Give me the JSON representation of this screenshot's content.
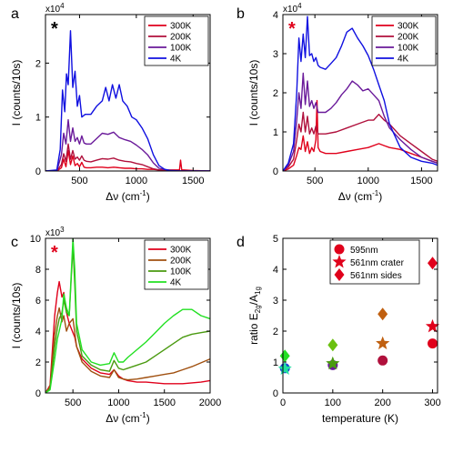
{
  "chart_data": [
    {
      "panel": "a",
      "type": "line",
      "marker": "*",
      "marker_color": "#000000",
      "multiplier": "x10",
      "multiplier_exp": "4",
      "xlabel": "Δν (cm",
      "xlabel_sup": "-1",
      "xlabel_tail": ")",
      "ylabel": "I (counts/10s)",
      "xlim": [
        200,
        1650
      ],
      "ylim": [
        0,
        2.9
      ],
      "xticks": [
        500,
        1000,
        1500
      ],
      "xtick_labels": [
        "500",
        "1000",
        "1500"
      ],
      "yticks": [
        0,
        1,
        2
      ],
      "ytick_labels": [
        "0",
        "1",
        "2"
      ],
      "legend_position": "top-right",
      "series": [
        {
          "name": "300K",
          "color": "#e0001b",
          "x": [
            200,
            300,
            340,
            360,
            380,
            400,
            420,
            440,
            460,
            480,
            500,
            520,
            540,
            560,
            600,
            650,
            700,
            750,
            800,
            850,
            900,
            950,
            1000,
            1050,
            1100,
            1150,
            1200,
            1250,
            1300,
            1350,
            1380,
            1390,
            1400,
            1420,
            1500,
            1650
          ],
          "y": [
            0,
            0,
            0.06,
            0.22,
            0.08,
            0.38,
            0.12,
            0.28,
            0.1,
            0.14,
            0.08,
            0.16,
            0.07,
            0.06,
            0.06,
            0.07,
            0.07,
            0.06,
            0.07,
            0.06,
            0.05,
            0.05,
            0.04,
            0.04,
            0.03,
            0.03,
            0.02,
            0.02,
            0.02,
            0.02,
            0.02,
            0.2,
            0.02,
            0.02,
            0.01,
            0
          ]
        },
        {
          "name": "200K",
          "color": "#b0103c",
          "x": [
            200,
            300,
            340,
            360,
            380,
            400,
            420,
            440,
            460,
            480,
            500,
            520,
            540,
            560,
            600,
            650,
            700,
            750,
            800,
            850,
            900,
            950,
            1000,
            1050,
            1100,
            1150,
            1200,
            1300,
            1400,
            1500,
            1650
          ],
          "y": [
            0,
            0,
            0.12,
            0.32,
            0.18,
            0.5,
            0.22,
            0.38,
            0.22,
            0.26,
            0.2,
            0.28,
            0.2,
            0.18,
            0.17,
            0.2,
            0.23,
            0.22,
            0.24,
            0.2,
            0.18,
            0.17,
            0.14,
            0.12,
            0.08,
            0.04,
            0.02,
            0.01,
            0,
            0,
            0
          ]
        },
        {
          "name": "100K",
          "color": "#6a1a9a",
          "x": [
            200,
            300,
            340,
            360,
            380,
            400,
            420,
            440,
            460,
            480,
            500,
            520,
            540,
            560,
            600,
            650,
            700,
            750,
            800,
            850,
            900,
            950,
            1000,
            1050,
            1100,
            1150,
            1200,
            1300,
            1400,
            1500,
            1650
          ],
          "y": [
            0,
            0,
            0.3,
            0.7,
            0.5,
            0.95,
            0.55,
            0.8,
            0.55,
            0.62,
            0.5,
            0.65,
            0.52,
            0.5,
            0.5,
            0.6,
            0.7,
            0.68,
            0.72,
            0.62,
            0.58,
            0.55,
            0.48,
            0.4,
            0.3,
            0.15,
            0.05,
            0.01,
            0,
            0,
            0
          ]
        },
        {
          "name": "4K",
          "color": "#1010e0",
          "x": [
            200,
            300,
            330,
            350,
            370,
            385,
            400,
            420,
            440,
            460,
            480,
            500,
            520,
            550,
            600,
            650,
            700,
            730,
            760,
            790,
            820,
            850,
            880,
            920,
            960,
            1000,
            1050,
            1100,
            1150,
            1200,
            1250,
            1300,
            1400,
            1500,
            1650
          ],
          "y": [
            0,
            0.02,
            0.4,
            1.5,
            1.1,
            1.8,
            1.6,
            2.6,
            1.55,
            1.85,
            1.2,
            1.4,
            1.0,
            1.05,
            1.05,
            1.2,
            1.3,
            1.55,
            1.3,
            1.6,
            1.35,
            1.6,
            1.3,
            1.2,
            1.0,
            0.95,
            0.8,
            0.6,
            0.3,
            0.1,
            0.03,
            0.01,
            0,
            0,
            0
          ]
        }
      ]
    },
    {
      "panel": "b",
      "type": "line",
      "marker": "*",
      "marker_color": "#e0001b",
      "multiplier": "x10",
      "multiplier_exp": "4",
      "xlabel": "Δν (cm",
      "xlabel_sup": "-1",
      "xlabel_tail": ")",
      "ylabel": "I (counts/10s)",
      "xlim": [
        200,
        1650
      ],
      "ylim": [
        0,
        4
      ],
      "xticks": [
        500,
        1000,
        1500
      ],
      "xtick_labels": [
        "500",
        "1000",
        "1500"
      ],
      "yticks": [
        0,
        1,
        2,
        3,
        4
      ],
      "ytick_labels": [
        "0",
        "1",
        "2",
        "3",
        "4"
      ],
      "legend_position": "top-right",
      "series": [
        {
          "name": "300K",
          "color": "#e0001b",
          "x": [
            200,
            250,
            300,
            330,
            350,
            370,
            390,
            410,
            430,
            450,
            470,
            490,
            510,
            520,
            530,
            550,
            600,
            700,
            800,
            900,
            1000,
            1100,
            1150,
            1200,
            1300,
            1400,
            1500,
            1600,
            1650
          ],
          "y": [
            0,
            0.05,
            0.15,
            0.4,
            0.6,
            0.55,
            0.9,
            0.5,
            0.75,
            0.45,
            0.6,
            0.5,
            0.8,
            1.8,
            0.6,
            0.5,
            0.45,
            0.45,
            0.5,
            0.55,
            0.6,
            0.7,
            0.65,
            0.6,
            0.55,
            0.45,
            0.35,
            0.25,
            0.2
          ]
        },
        {
          "name": "200K",
          "color": "#b0103c",
          "x": [
            200,
            250,
            300,
            330,
            350,
            370,
            390,
            410,
            430,
            450,
            470,
            490,
            510,
            530,
            550,
            600,
            700,
            800,
            900,
            1000,
            1050,
            1100,
            1150,
            1200,
            1300,
            1400,
            1500,
            1600,
            1650
          ],
          "y": [
            0,
            0.1,
            0.3,
            0.8,
            1.2,
            1.0,
            1.5,
            1.0,
            1.4,
            0.95,
            1.1,
            0.95,
            1.15,
            0.95,
            0.95,
            0.95,
            1.0,
            1.1,
            1.2,
            1.3,
            1.3,
            1.45,
            1.3,
            1.2,
            0.9,
            0.7,
            0.5,
            0.3,
            0.25
          ]
        },
        {
          "name": "100K",
          "color": "#6a1a9a",
          "x": [
            200,
            250,
            300,
            330,
            350,
            370,
            390,
            410,
            430,
            450,
            470,
            490,
            510,
            530,
            550,
            600,
            650,
            700,
            750,
            800,
            850,
            900,
            950,
            1000,
            1050,
            1100,
            1150,
            1200,
            1300,
            1400,
            1500,
            1600,
            1650
          ],
          "y": [
            0,
            0.15,
            0.5,
            1.3,
            2.0,
            1.6,
            2.5,
            1.7,
            2.3,
            1.65,
            1.8,
            1.6,
            1.75,
            1.5,
            1.5,
            1.5,
            1.6,
            1.75,
            1.95,
            2.1,
            2.3,
            2.2,
            2.05,
            2.1,
            1.95,
            1.8,
            1.4,
            1.1,
            0.8,
            0.55,
            0.35,
            0.25,
            0.2
          ]
        },
        {
          "name": "4K",
          "color": "#1010e0",
          "x": [
            200,
            250,
            300,
            330,
            350,
            370,
            390,
            410,
            430,
            450,
            470,
            490,
            510,
            530,
            550,
            600,
            650,
            700,
            750,
            800,
            850,
            900,
            950,
            1000,
            1050,
            1100,
            1150,
            1200,
            1300,
            1400,
            1500,
            1600,
            1650
          ],
          "y": [
            0,
            0.2,
            0.7,
            2.0,
            3.4,
            2.8,
            3.5,
            2.9,
            3.95,
            2.95,
            3.0,
            2.8,
            2.9,
            2.7,
            2.65,
            2.6,
            2.75,
            2.9,
            3.2,
            3.55,
            3.65,
            3.4,
            3.2,
            2.95,
            2.6,
            2.2,
            1.8,
            1.2,
            0.6,
            0.35,
            0.25,
            0.2,
            0.15
          ]
        }
      ]
    },
    {
      "panel": "c",
      "type": "line",
      "marker": "*",
      "marker_color": "#e0001b",
      "multiplier": "x10",
      "multiplier_exp": "3",
      "xlabel": "Δν (cm",
      "xlabel_sup": "-1",
      "xlabel_tail": ")",
      "ylabel": "I (counts/10s)",
      "xlim": [
        200,
        2000
      ],
      "ylim": [
        0,
        10
      ],
      "xticks": [
        500,
        1000,
        1500,
        2000
      ],
      "xtick_labels": [
        "500",
        "1000",
        "1500",
        "2000"
      ],
      "yticks": [
        0,
        2,
        4,
        6,
        8,
        10
      ],
      "ytick_labels": [
        "0",
        "2",
        "4",
        "6",
        "8",
        "10"
      ],
      "legend_position": "top-right",
      "series": [
        {
          "name": "300K",
          "color": "#e0001b",
          "x": [
            200,
            250,
            300,
            330,
            350,
            380,
            400,
            430,
            460,
            500,
            520,
            540,
            600,
            700,
            800,
            900,
            950,
            1000,
            1050,
            1100,
            1200,
            1300,
            1400,
            1500,
            1600,
            1700,
            1800,
            1900,
            2000
          ],
          "y": [
            0,
            0.5,
            5.0,
            6.5,
            7.2,
            6.2,
            6.5,
            5.2,
            4.5,
            3.9,
            3.6,
            3.0,
            2.2,
            1.6,
            1.3,
            1.2,
            1.5,
            1.1,
            0.9,
            0.8,
            0.7,
            0.7,
            0.65,
            0.6,
            0.6,
            0.6,
            0.65,
            0.7,
            0.8
          ]
        },
        {
          "name": "200K",
          "color": "#a05010",
          "x": [
            200,
            250,
            300,
            330,
            350,
            380,
            400,
            430,
            460,
            500,
            520,
            540,
            600,
            700,
            800,
            900,
            950,
            1000,
            1050,
            1100,
            1200,
            1300,
            1400,
            1500,
            1600,
            1700,
            1800,
            1900,
            2000
          ],
          "y": [
            0,
            0.4,
            3.8,
            5.0,
            5.5,
            4.6,
            5.0,
            4.0,
            4.5,
            4.8,
            3.9,
            3.0,
            2.0,
            1.4,
            1.1,
            1.0,
            1.5,
            1.0,
            0.9,
            0.85,
            0.9,
            1.0,
            1.1,
            1.2,
            1.3,
            1.5,
            1.7,
            1.95,
            2.2
          ]
        },
        {
          "name": "100K",
          "color": "#4a9a10",
          "x": [
            200,
            250,
            300,
            330,
            350,
            380,
            400,
            430,
            460,
            500,
            520,
            540,
            600,
            700,
            800,
            900,
            950,
            1000,
            1050,
            1100,
            1200,
            1300,
            1400,
            1500,
            1600,
            1700,
            1800,
            1900,
            2000
          ],
          "y": [
            0,
            0.3,
            3.0,
            4.2,
            4.8,
            5.2,
            6.0,
            5.2,
            5.0,
            9.5,
            7.0,
            4.0,
            2.4,
            1.8,
            1.5,
            1.4,
            2.1,
            1.6,
            1.5,
            1.6,
            1.8,
            2.0,
            2.4,
            2.8,
            3.2,
            3.6,
            3.8,
            3.9,
            4.0
          ]
        },
        {
          "name": "4K",
          "color": "#22e022",
          "x": [
            200,
            250,
            300,
            330,
            350,
            380,
            400,
            430,
            460,
            500,
            520,
            540,
            600,
            700,
            800,
            900,
            950,
            1000,
            1050,
            1100,
            1200,
            1300,
            1400,
            1500,
            1600,
            1700,
            1800,
            1900,
            2000
          ],
          "y": [
            0,
            0.2,
            2.2,
            3.5,
            4.0,
            4.8,
            6.4,
            5.5,
            5.0,
            10.0,
            8.0,
            4.5,
            2.8,
            2.0,
            1.8,
            1.9,
            2.6,
            2.0,
            2.0,
            2.3,
            2.8,
            3.3,
            3.9,
            4.5,
            5.0,
            5.4,
            5.4,
            5.0,
            4.8
          ]
        }
      ]
    },
    {
      "panel": "d",
      "type": "scatter",
      "xlabel": "temperature (K)",
      "ylabel": "ratio E",
      "ylabel_sub1": "2g",
      "ylabel_mid": "/A",
      "ylabel_sub2": "1g",
      "xlim": [
        0,
        310
      ],
      "ylim": [
        0,
        5
      ],
      "xticks": [
        0,
        100,
        200,
        300
      ],
      "xtick_labels": [
        "0",
        "100",
        "200",
        "300"
      ],
      "yticks": [
        0,
        1,
        2,
        3,
        4,
        5
      ],
      "ytick_labels": [
        "0",
        "1",
        "2",
        "3",
        "4",
        "5"
      ],
      "legend_position": "top-left",
      "series": [
        {
          "name": "595nm",
          "marker": "circle",
          "legend_color": "#e0001b",
          "points": [
            {
              "x": 4,
              "y": 0.8,
              "color": "#1a3fd0"
            },
            {
              "x": 100,
              "y": 0.9,
              "color": "#6a1a9a"
            },
            {
              "x": 200,
              "y": 1.05,
              "color": "#b0103c"
            },
            {
              "x": 300,
              "y": 1.6,
              "color": "#e0001b"
            }
          ]
        },
        {
          "name": "561nm crater",
          "marker": "star",
          "legend_color": "#e0001b",
          "points": [
            {
              "x": 4,
              "y": 0.78,
              "color": "#22e0a0"
            },
            {
              "x": 100,
              "y": 0.95,
              "color": "#4a9a10"
            },
            {
              "x": 200,
              "y": 1.6,
              "color": "#c06010"
            },
            {
              "x": 300,
              "y": 2.15,
              "color": "#e0001b"
            }
          ]
        },
        {
          "name": "561nm sides",
          "marker": "diamond",
          "legend_color": "#e0001b",
          "points": [
            {
              "x": 4,
              "y": 1.2,
              "color": "#22e022"
            },
            {
              "x": 100,
              "y": 1.55,
              "color": "#6ac010"
            },
            {
              "x": 200,
              "y": 2.55,
              "color": "#c06010"
            },
            {
              "x": 300,
              "y": 4.2,
              "color": "#e0001b"
            }
          ]
        }
      ]
    }
  ]
}
